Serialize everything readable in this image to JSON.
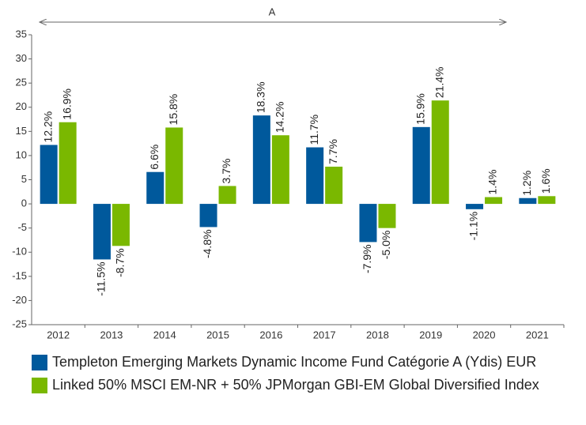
{
  "chart_data": {
    "type": "bar",
    "annotations": [
      {
        "text": "A"
      }
    ],
    "categories": [
      "2012",
      "2013",
      "2014",
      "2015",
      "2016",
      "2017",
      "2018",
      "2019",
      "2020",
      "2021"
    ],
    "series": [
      {
        "name": "Templeton Emerging Markets Dynamic Income Fund Catégorie A (Ydis) EUR",
        "color": "#00599c",
        "values": [
          12.2,
          -11.5,
          6.6,
          -4.8,
          18.3,
          11.7,
          -7.9,
          15.9,
          -1.1,
          1.2
        ],
        "value_labels": [
          "12.2%",
          "-11.5%",
          "6.6%",
          "-4.8%",
          "18.3%",
          "11.7%",
          "-7.9%",
          "15.9%",
          "-1.1%",
          "1.2%"
        ]
      },
      {
        "name": "Linked 50% MSCI EM-NR + 50% JPMorgan GBI-EM Global Diversified Index",
        "color": "#7ab800",
        "values": [
          16.9,
          -8.7,
          15.8,
          3.7,
          14.2,
          7.7,
          -5,
          21.4,
          1.4,
          1.6
        ],
        "value_labels": [
          "16.9%",
          "-8.7%",
          "15.8%",
          "3.7%",
          "14.2%",
          "7.7%",
          "-5.0%",
          "21.4%",
          "1.4%",
          "1.6%"
        ]
      }
    ],
    "ylim": [
      -25,
      35
    ],
    "yticks": [
      -25,
      -20,
      -15,
      -10,
      -5,
      0,
      5,
      10,
      15,
      20,
      25,
      30,
      35
    ],
    "grid": false,
    "legend": "bottom"
  }
}
